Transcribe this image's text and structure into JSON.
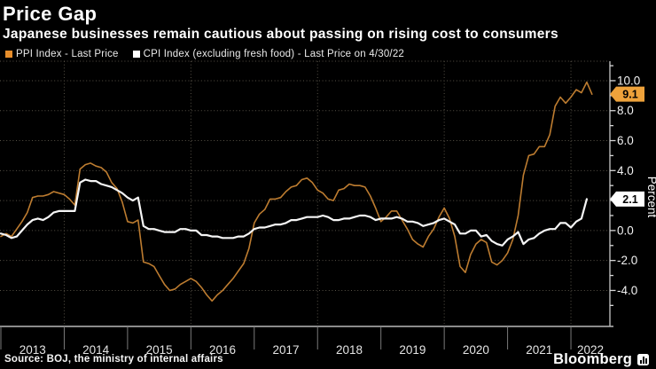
{
  "header": {
    "title": "Price Gap",
    "subtitle": "Japanese businesses remain cautious about passing on rising cost to consumers"
  },
  "legend": {
    "items": [
      {
        "label": "PPI Index - Last Price",
        "color": "#e68d2b"
      },
      {
        "label": "CPI Index (excluding fresh food) - Last Price on 4/30/22",
        "color": "#ffffff"
      }
    ]
  },
  "footer": {
    "source": "Source: BOJ, the ministry of internal affairs",
    "brand": "Bloomberg",
    "brand_mark": "bar-chart-mark"
  },
  "chart_data": {
    "type": "line",
    "title": "Price Gap",
    "ylabel": "Percent",
    "x_start": "2013-01",
    "x_frequency": "monthly",
    "x_tick_labels": [
      "2013",
      "2014",
      "2015",
      "2016",
      "2017",
      "2018",
      "2019",
      "2020",
      "2021",
      "2022"
    ],
    "ylim": [
      -6.4,
      11.3
    ],
    "y_ticks_major": [
      10.0,
      8.0,
      6.0,
      4.0,
      2.0,
      0.0,
      -2.0,
      -4.0
    ],
    "y_ticks_minor": [
      11.0,
      9.0,
      7.0,
      5.0,
      3.0,
      1.0,
      -1.0,
      -3.0,
      -5.0
    ],
    "y_tick_labels_visible": [
      "10.0",
      "8.0",
      "6.0",
      "4.0",
      "0.0",
      "-2.0",
      "-4.0"
    ],
    "grid": "dotted",
    "legend_position": "top-left",
    "series": [
      {
        "name": "PPI Index - Last Price",
        "color": "#bd7c30",
        "width": 1.6,
        "last_value": 9.1,
        "badge": {
          "label": "9.1",
          "value": 9.1,
          "color": "#eea23b"
        },
        "values": [
          -0.4,
          -0.2,
          -0.4,
          0.1,
          0.6,
          1.2,
          2.2,
          2.3,
          2.3,
          2.4,
          2.6,
          2.5,
          2.4,
          2.1,
          1.7,
          4.1,
          4.4,
          4.5,
          4.3,
          4.2,
          3.9,
          3.2,
          2.8,
          1.9,
          0.6,
          0.5,
          0.7,
          -2.1,
          -2.2,
          -2.4,
          -3.0,
          -3.6,
          -4.0,
          -3.9,
          -3.6,
          -3.4,
          -3.2,
          -3.4,
          -3.8,
          -4.3,
          -4.7,
          -4.3,
          -4.0,
          -3.6,
          -3.2,
          -2.7,
          -2.2,
          -1.2,
          0.5,
          1.1,
          1.4,
          2.1,
          2.1,
          2.2,
          2.6,
          2.9,
          3.0,
          3.4,
          3.5,
          3.2,
          2.7,
          2.5,
          2.1,
          2.0,
          2.7,
          2.8,
          3.1,
          3.0,
          3.0,
          2.9,
          2.3,
          1.5,
          0.6,
          0.9,
          1.3,
          1.3,
          0.7,
          0.1,
          -0.6,
          -0.9,
          -1.1,
          -0.4,
          0.1,
          0.9,
          1.5,
          0.8,
          -0.4,
          -2.4,
          -2.8,
          -1.6,
          -0.9,
          -0.6,
          -0.8,
          -2.1,
          -2.3,
          -2.0,
          -1.5,
          -0.6,
          1.0,
          3.7,
          5.0,
          5.1,
          5.6,
          5.6,
          6.4,
          8.3,
          8.9,
          8.5,
          8.9,
          9.4,
          9.2,
          9.9,
          9.1
        ]
      },
      {
        "name": "CPI Index (excluding fresh food) - Last Price on 4/30/22",
        "color": "#f5f5f5",
        "width": 2.2,
        "last_value": 2.1,
        "badge": {
          "label": "2.1",
          "value": 2.1,
          "color": "#ffffff"
        },
        "values": [
          -0.2,
          -0.3,
          -0.5,
          -0.4,
          0.0,
          0.4,
          0.7,
          0.8,
          0.7,
          0.9,
          1.2,
          1.3,
          1.3,
          1.3,
          1.3,
          3.2,
          3.4,
          3.3,
          3.3,
          3.1,
          3.0,
          2.9,
          2.7,
          2.5,
          2.2,
          2.0,
          2.2,
          0.3,
          0.1,
          0.1,
          0.0,
          -0.1,
          -0.1,
          -0.1,
          0.1,
          0.1,
          0.0,
          0.0,
          -0.3,
          -0.3,
          -0.4,
          -0.4,
          -0.5,
          -0.5,
          -0.5,
          -0.4,
          -0.4,
          -0.2,
          0.1,
          0.2,
          0.2,
          0.3,
          0.4,
          0.4,
          0.5,
          0.7,
          0.7,
          0.8,
          0.9,
          0.9,
          0.9,
          1.0,
          0.9,
          0.7,
          0.7,
          0.8,
          0.8,
          0.9,
          1.0,
          1.0,
          0.9,
          0.7,
          0.8,
          0.8,
          0.8,
          0.9,
          0.8,
          0.6,
          0.6,
          0.5,
          0.3,
          0.4,
          0.5,
          0.7,
          0.8,
          0.6,
          0.4,
          -0.2,
          -0.2,
          0.0,
          0.0,
          -0.4,
          -0.3,
          -0.7,
          -0.9,
          -1.0,
          -0.6,
          -0.4,
          -0.1,
          -0.9,
          -0.6,
          -0.5,
          -0.2,
          0.0,
          0.1,
          0.1,
          0.5,
          0.5,
          0.2,
          0.6,
          0.8,
          2.1
        ]
      }
    ]
  }
}
